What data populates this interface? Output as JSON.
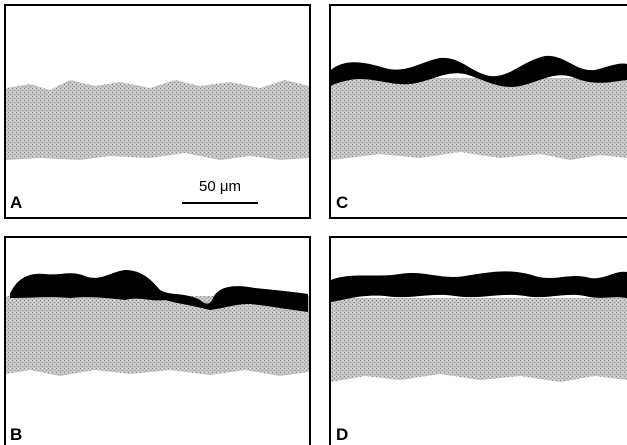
{
  "panels": [
    {
      "label": "A"
    },
    {
      "label": "C"
    },
    {
      "label": "B"
    },
    {
      "label": "D"
    }
  ],
  "scale_bar": {
    "label": "50 μm"
  }
}
